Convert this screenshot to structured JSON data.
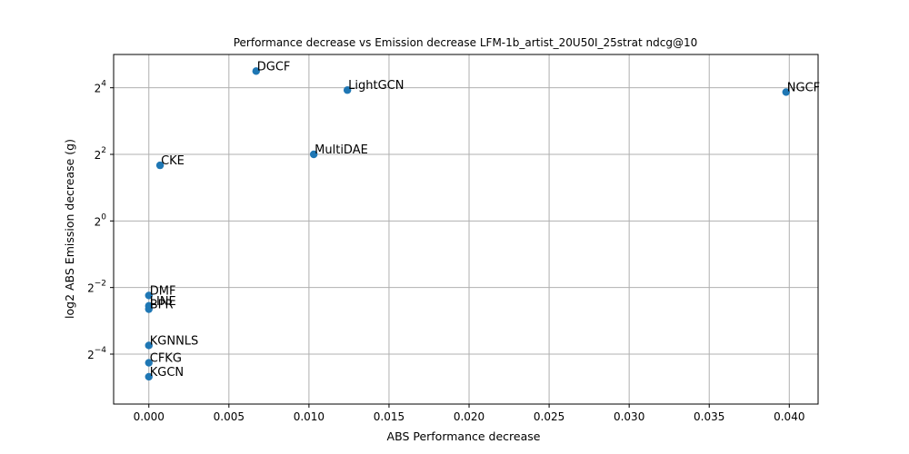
{
  "chart_data": {
    "type": "scatter",
    "title": "Performance decrease vs Emission decrease LFM-1b_artist_20U50I_25strat ndcg@10",
    "xlabel": "ABS Performance decrease",
    "ylabel": "log2 ABS Emission decrease (g)",
    "xlim": [
      -0.0022,
      0.0418
    ],
    "ylim_log2": [
      -5.5,
      5.0
    ],
    "y_scale": "log2",
    "grid": true,
    "x_ticks": [
      {
        "value": 0.0,
        "label": "0.000"
      },
      {
        "value": 0.005,
        "label": "0.005"
      },
      {
        "value": 0.01,
        "label": "0.010"
      },
      {
        "value": 0.015,
        "label": "0.015"
      },
      {
        "value": 0.02,
        "label": "0.020"
      },
      {
        "value": 0.025,
        "label": "0.025"
      },
      {
        "value": 0.03,
        "label": "0.030"
      },
      {
        "value": 0.035,
        "label": "0.035"
      },
      {
        "value": 0.04,
        "label": "0.040"
      }
    ],
    "y_ticks": [
      {
        "exp": -4,
        "base": "2",
        "sup": "−4"
      },
      {
        "exp": -2,
        "base": "2",
        "sup": "−2"
      },
      {
        "exp": 0,
        "base": "2",
        "sup": "0"
      },
      {
        "exp": 2,
        "base": "2",
        "sup": "2"
      },
      {
        "exp": 4,
        "base": "2",
        "sup": "4"
      }
    ],
    "marker_color": "#1f77b4",
    "points": [
      {
        "label": "DGCF",
        "x": 0.0067,
        "log2_y": 4.5
      },
      {
        "label": "LightGCN",
        "x": 0.0124,
        "log2_y": 3.93
      },
      {
        "label": "NGCF",
        "x": 0.0398,
        "log2_y": 3.87
      },
      {
        "label": "MultiDAE",
        "x": 0.0103,
        "log2_y": 2.0
      },
      {
        "label": "CKE",
        "x": 0.0007,
        "log2_y": 1.67
      },
      {
        "label": "DMF",
        "x": 0.0,
        "log2_y": -2.24
      },
      {
        "label": "LINE",
        "x": 0.0,
        "log2_y": -2.55
      },
      {
        "label": "BPR",
        "x": 0.0,
        "log2_y": -2.65
      },
      {
        "label": "KGNNLS",
        "x": 0.0,
        "log2_y": -3.74
      },
      {
        "label": "CFKG",
        "x": 0.0,
        "log2_y": -4.26
      },
      {
        "label": "KGCN",
        "x": 0.0,
        "log2_y": -4.68
      }
    ]
  }
}
